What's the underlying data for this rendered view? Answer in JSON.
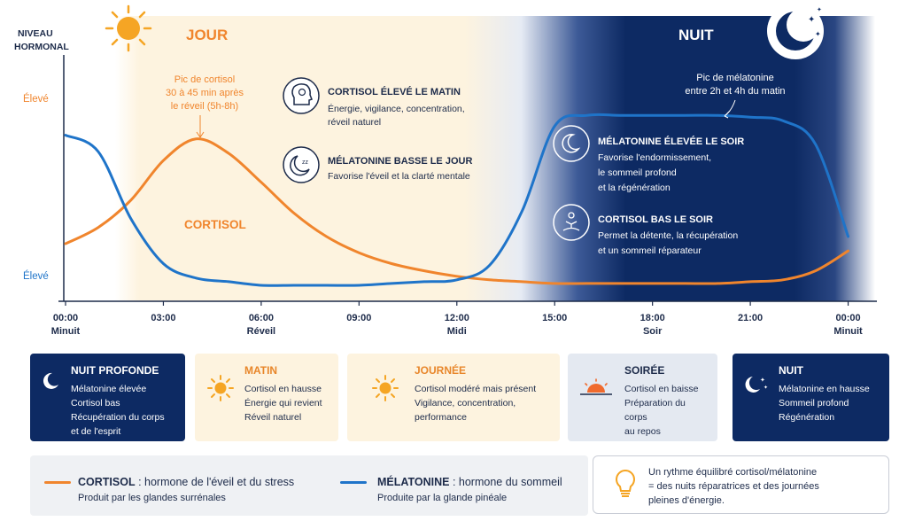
{
  "colors": {
    "cortisol": "#f0852d",
    "melatonin": "#1f74c9",
    "night": "#0d2a63",
    "day": "#fdf3df",
    "text": "#1d2b4a"
  },
  "header": {
    "jour": "JOUR",
    "nuit": "NUIT"
  },
  "chart_data": {
    "type": "line",
    "ylabel": [
      "NIVEAU",
      "HORMONAL"
    ],
    "y_high_labels": [
      "Élevé",
      "Élevé"
    ],
    "x": [
      0,
      1,
      2,
      3,
      4,
      5,
      6,
      7,
      8,
      9,
      10,
      11,
      12,
      13,
      14,
      15,
      16,
      17,
      18,
      19,
      20,
      21,
      22,
      23,
      24
    ],
    "xlim": [
      0,
      24.8
    ],
    "ylim": [
      0,
      1
    ],
    "xticks": [
      {
        "hour": 0,
        "label": "00:00",
        "sub": "Minuit"
      },
      {
        "hour": 3,
        "label": "03:00",
        "sub": ""
      },
      {
        "hour": 6,
        "label": "06:00",
        "sub": "Réveil"
      },
      {
        "hour": 9,
        "label": "09:00",
        "sub": ""
      },
      {
        "hour": 12,
        "label": "12:00",
        "sub": "Midi"
      },
      {
        "hour": 15,
        "label": "15:00",
        "sub": ""
      },
      {
        "hour": 18,
        "label": "18:00",
        "sub": "Soir"
      },
      {
        "hour": 21,
        "label": "21:00",
        "sub": ""
      },
      {
        "hour": 24,
        "label": "00:00",
        "sub": "Minuit"
      }
    ],
    "series": [
      {
        "name": "CORTISOL",
        "color": "#f0852d",
        "values": [
          0.24,
          0.33,
          0.48,
          0.7,
          0.82,
          0.74,
          0.58,
          0.41,
          0.28,
          0.19,
          0.13,
          0.09,
          0.06,
          0.04,
          0.03,
          0.02,
          0.02,
          0.02,
          0.02,
          0.02,
          0.02,
          0.03,
          0.04,
          0.09,
          0.2
        ]
      },
      {
        "name": "MÉLATONINE",
        "color": "#1f74c9",
        "values": [
          0.84,
          0.75,
          0.38,
          0.13,
          0.05,
          0.03,
          0.01,
          0.01,
          0.01,
          0.01,
          0.02,
          0.03,
          0.04,
          0.12,
          0.42,
          0.89,
          0.95,
          0.95,
          0.95,
          0.95,
          0.95,
          0.94,
          0.92,
          0.79,
          0.28
        ]
      }
    ],
    "annotations": {
      "cortisol_peak": [
        "Pic de cortisol",
        "30 à 45 min après",
        "le réveil (5h-8h)"
      ],
      "cortisol_peak_hour": 4,
      "melatonin_peak": [
        "Pic de mélatonine",
        "entre 2h et 4h du matin"
      ],
      "melatonin_peak_hour": 22.5,
      "cortisol_label": "CORTISOL"
    }
  },
  "info_day": [
    {
      "icon": "brain-icon",
      "title": "CORTISOL ÉLEVÉ LE MATIN",
      "lines": [
        "Énergie, vigilance, concentration,",
        "réveil naturel"
      ]
    },
    {
      "icon": "sleep-face-icon",
      "title": "MÉLATONINE BASSE LE JOUR",
      "lines": [
        "Favorise l'éveil et la clarté mentale"
      ]
    }
  ],
  "info_night": [
    {
      "icon": "moon-icon",
      "title": "MÉLATONINE ÉLEVÉE LE SOIR",
      "lines": [
        "Favorise l'endormissement,",
        "le sommeil profond",
        "et la régénération"
      ]
    },
    {
      "icon": "meditation-icon",
      "title": "CORTISOL BAS LE SOIR",
      "lines": [
        "Permet la détente, la récupération",
        "et un sommeil réparateur"
      ]
    }
  ],
  "phases": [
    {
      "icon": "moon-icon",
      "title": "NUIT PROFONDE",
      "lines": [
        "Mélatonine élevée",
        "Cortisol bas",
        "Récupération du corps",
        "et de l'esprit"
      ]
    },
    {
      "icon": "sun-icon",
      "title": "MATIN",
      "lines": [
        "Cortisol en hausse",
        "Énergie qui revient",
        "Réveil naturel"
      ]
    },
    {
      "icon": "sun-icon",
      "title": "JOURNÉE",
      "lines": [
        "Cortisol modéré mais présent",
        "Vigilance, concentration,",
        "performance"
      ]
    },
    {
      "icon": "sunset-icon",
      "title": "SOIRÉE",
      "lines": [
        "Cortisol en baisse",
        "Préparation du corps",
        "au repos"
      ]
    },
    {
      "icon": "moon-stars-icon",
      "title": "NUIT",
      "lines": [
        "Mélatonine en hausse",
        "Sommeil profond",
        "Régénération"
      ]
    }
  ],
  "legend": {
    "cortisol": {
      "name": "CORTISOL",
      "desc": " : hormone de l'éveil et du stress",
      "sub": "Produit par les glandes surrénales"
    },
    "melatonin": {
      "name": "MÉLATONINE",
      "desc": " : hormone du sommeil",
      "sub": "Produite par la glande pinéale"
    }
  },
  "tip": {
    "icon": "lightbulb-icon",
    "lines": [
      "Un rythme équilibré cortisol/mélatonine",
      "= des nuits réparatrices et des journées",
      "pleines d'énergie."
    ]
  }
}
